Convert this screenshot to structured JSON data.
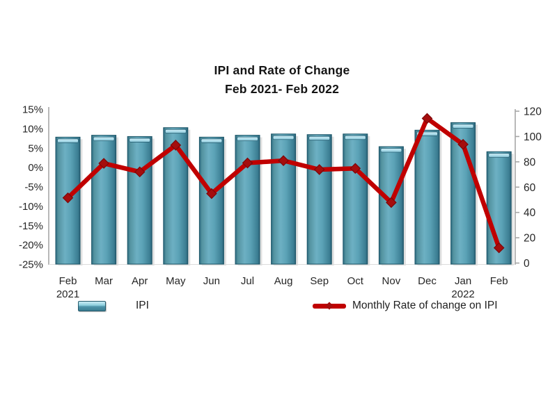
{
  "chart_data": {
    "type": "bar+line",
    "title": "IPI and Rate of Change",
    "subtitle": "Feb 2021- Feb 2022",
    "categories": [
      {
        "label": "Feb",
        "sub": "2021"
      },
      {
        "label": "Mar",
        "sub": ""
      },
      {
        "label": "Apr",
        "sub": ""
      },
      {
        "label": "May",
        "sub": ""
      },
      {
        "label": "Jun",
        "sub": ""
      },
      {
        "label": "Jul",
        "sub": ""
      },
      {
        "label": "Aug",
        "sub": ""
      },
      {
        "label": "Sep",
        "sub": ""
      },
      {
        "label": "Oct",
        "sub": ""
      },
      {
        "label": "Nov",
        "sub": ""
      },
      {
        "label": "Dec",
        "sub": ""
      },
      {
        "label": "Jan",
        "sub": "2022"
      },
      {
        "label": "Feb",
        "sub": ""
      }
    ],
    "series": [
      {
        "name": "IPI",
        "type": "bar",
        "axis": "right",
        "color": "#4f96ab",
        "values": [
          99.5,
          101,
          100,
          107,
          99.5,
          101,
          102,
          101.5,
          102,
          92,
          105,
          111,
          88
        ]
      },
      {
        "name": "Monthly Rate of change on IPI",
        "type": "line",
        "axis": "left",
        "color": "#c00000",
        "values": [
          -7.9,
          1.0,
          -1.2,
          5.7,
          -6.8,
          1.1,
          1.7,
          -0.6,
          -0.3,
          -9.1,
          12.6,
          5.9,
          -20.8
        ]
      }
    ],
    "left_axis": {
      "min": -25,
      "max": 15,
      "step": 5,
      "unit": "%",
      "tick_labels": [
        "15%",
        "10%",
        "5%",
        "0%",
        "-5%",
        "-10%",
        "-15%",
        "-20%",
        "-25%"
      ]
    },
    "right_axis": {
      "min": 0,
      "max": 120,
      "step": 20,
      "tick_labels": [
        "120",
        "100",
        "80",
        "60",
        "40",
        "20",
        "0"
      ]
    },
    "legend_position": "bottom",
    "grid": false
  },
  "colors": {
    "background": "#ffffff",
    "bar_fill": "#4f96ab",
    "bar_edge": "#1d5668",
    "bar_cap": "#a7dbe9",
    "line": "#c00000",
    "marker": "#a50d0d",
    "axis_line": "#a6a6a6",
    "text": "#262626"
  }
}
